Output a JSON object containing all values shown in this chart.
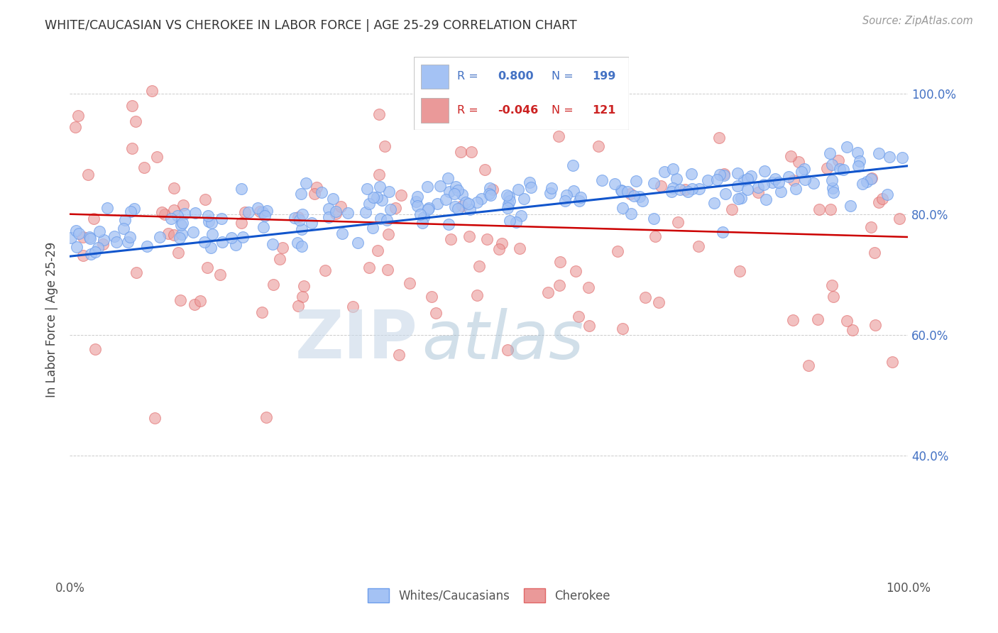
{
  "title": "WHITE/CAUCASIAN VS CHEROKEE IN LABOR FORCE | AGE 25-29 CORRELATION CHART",
  "source": "Source: ZipAtlas.com",
  "ylabel": "In Labor Force | Age 25-29",
  "xlim": [
    0.0,
    1.0
  ],
  "ylim": [
    0.2,
    1.05
  ],
  "yticks": [
    0.4,
    0.6,
    0.8,
    1.0
  ],
  "ytick_labels": [
    "40.0%",
    "60.0%",
    "80.0%",
    "100.0%"
  ],
  "xtick_labels": [
    "0.0%",
    "100.0%"
  ],
  "blue_R": 0.8,
  "blue_N": 199,
  "pink_R": -0.046,
  "pink_N": 121,
  "blue_line_start_y": 0.73,
  "blue_line_end_y": 0.88,
  "pink_line_start_y": 0.8,
  "pink_line_end_y": 0.762,
  "blue_color": "#a4c2f4",
  "blue_edge_color": "#6d9eeb",
  "blue_line_color": "#1155cc",
  "pink_color": "#ea9999",
  "pink_edge_color": "#e06666",
  "pink_line_color": "#cc0000",
  "legend_label_blue": "Whites/Caucasians",
  "legend_label_pink": "Cherokee",
  "watermark_zip": "ZIP",
  "watermark_atlas": "atlas",
  "title_color": "#333333",
  "right_tick_color": "#4472c4",
  "grid_color": "#cccccc",
  "background_color": "#ffffff"
}
